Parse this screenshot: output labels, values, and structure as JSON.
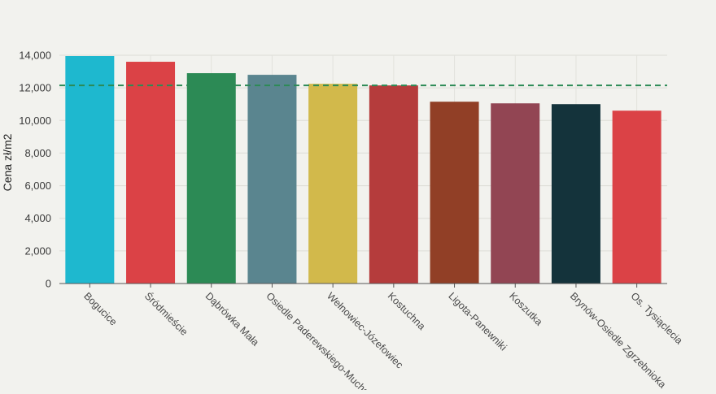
{
  "chart_data": {
    "type": "bar",
    "title": "",
    "xlabel": "",
    "ylabel": "Cena zł/m2",
    "ylim": [
      0,
      14000
    ],
    "yticks": [
      0,
      2000,
      4000,
      6000,
      8000,
      10000,
      12000,
      14000
    ],
    "ytick_labels": [
      "0",
      "2,000",
      "4,000",
      "6,000",
      "8,000",
      "10,000",
      "12,000",
      "14,000"
    ],
    "grid": true,
    "categories": [
      "Bogucice",
      "Śródmieście",
      "Dąbrówka Mała",
      "Osiedle Paderewskiego-Muchowiec",
      "Wełnowiec-Józefowiec",
      "Kostuchna",
      "Ligota-Panewniki",
      "Koszutka",
      "Brynów-Osiedle Zgrzebnioka",
      "Os. Tysiąclecia"
    ],
    "values": [
      13950,
      13600,
      12900,
      12800,
      12250,
      12150,
      11150,
      11050,
      11000,
      10600
    ],
    "colors": [
      "#1eb8cf",
      "#db4246",
      "#2c8a55",
      "#5a858f",
      "#d2b94b",
      "#b53c3c",
      "#913f26",
      "#924553",
      "#14333b",
      "#db4246"
    ],
    "reference_line": {
      "value": 12150,
      "color": "#2c8a55",
      "style": "dashed"
    }
  }
}
